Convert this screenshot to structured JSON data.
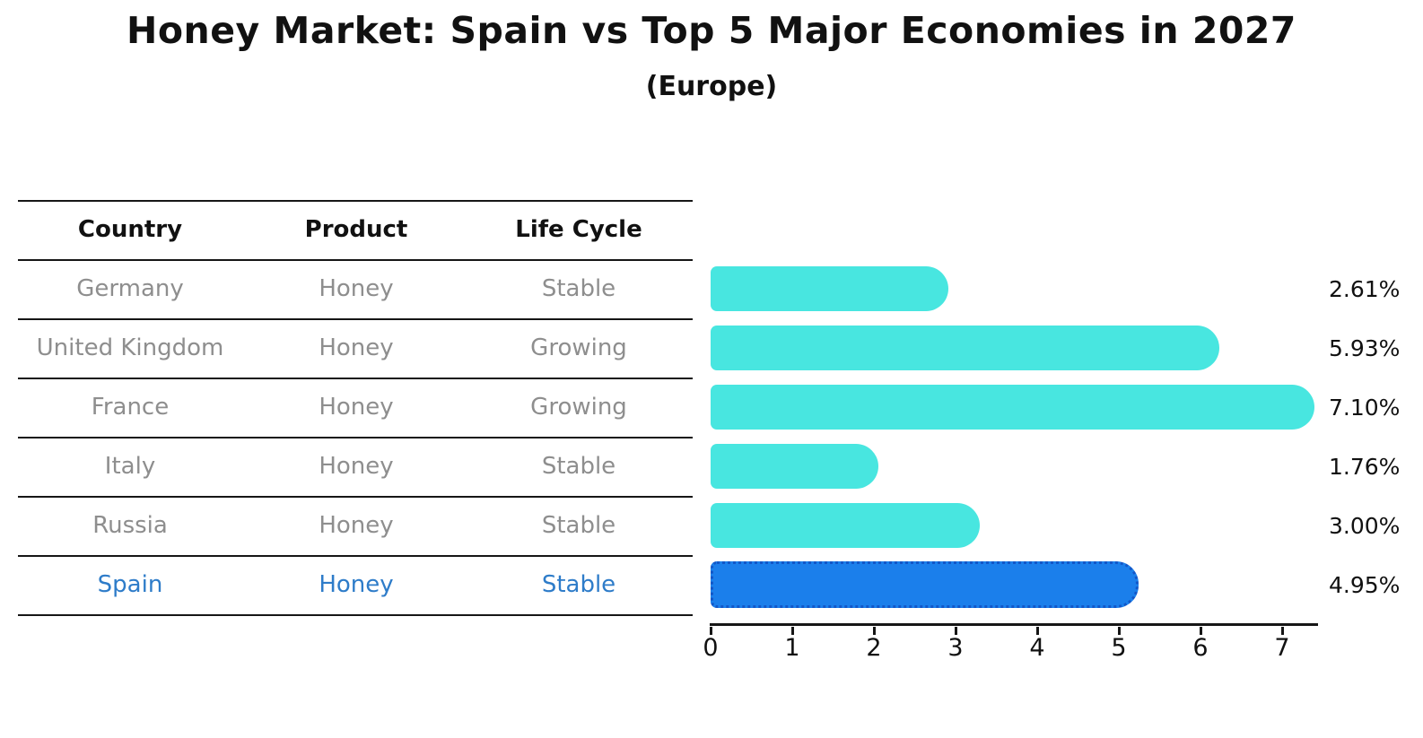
{
  "header": {
    "title": "Honey Market: Spain vs Top 5 Major Economies in 2027",
    "subtitle": "(Europe)"
  },
  "table": {
    "columns": [
      "Country",
      "Product",
      "Life Cycle"
    ],
    "rows": [
      {
        "country": "Germany",
        "product": "Honey",
        "life_cycle": "Stable",
        "highlight": false
      },
      {
        "country": "United Kingdom",
        "product": "Honey",
        "life_cycle": "Growing",
        "highlight": false
      },
      {
        "country": "France",
        "product": "Honey",
        "life_cycle": "Growing",
        "highlight": false
      },
      {
        "country": "Italy",
        "product": "Honey",
        "life_cycle": "Stable",
        "highlight": false
      },
      {
        "country": "Russia",
        "product": "Honey",
        "life_cycle": "Stable",
        "highlight": false
      },
      {
        "country": "Spain",
        "product": "Honey",
        "life_cycle": "Stable",
        "highlight": true
      }
    ]
  },
  "chart_data": {
    "type": "bar",
    "orientation": "horizontal",
    "title": "Honey Market: Spain vs Top 5 Major Economies in 2027",
    "subtitle": "(Europe)",
    "categories": [
      "Germany",
      "United Kingdom",
      "France",
      "Italy",
      "Russia",
      "Spain"
    ],
    "values": [
      2.61,
      5.93,
      7.1,
      1.76,
      3.0,
      4.95
    ],
    "value_labels": [
      "2.61%",
      "5.93%",
      "7.10%",
      "1.76%",
      "3.00%",
      "4.95%"
    ],
    "highlighted_category": "Spain",
    "x_ticks": [
      0,
      1,
      2,
      3,
      4,
      5,
      6,
      7
    ],
    "xlim": [
      0,
      7.45
    ],
    "grid": false,
    "legend": false
  },
  "colors": {
    "bar": "#48E6E0",
    "highlight_bar": "#1B7FEB",
    "highlight_bar_border": "#1257C8",
    "highlight_text": "#2E7CC9",
    "row_text": "#8E8E8E",
    "header_text": "#111111",
    "axis": "#161616"
  }
}
